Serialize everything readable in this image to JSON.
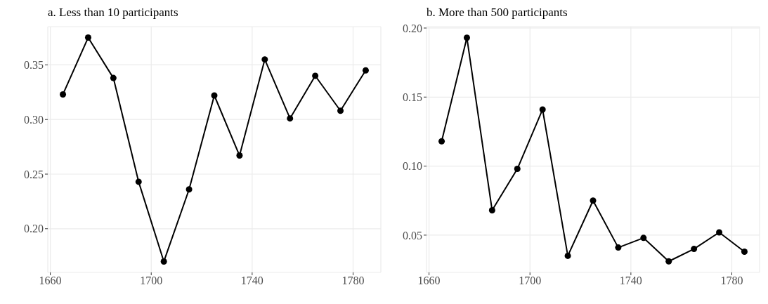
{
  "chart_data": [
    {
      "type": "line",
      "title": "a. Less than 10 participants",
      "x": [
        1665,
        1675,
        1685,
        1695,
        1705,
        1715,
        1725,
        1735,
        1745,
        1755,
        1765,
        1775,
        1785
      ],
      "series": [
        {
          "color": "#000000",
          "values": [
            0.323,
            0.375,
            0.338,
            0.243,
            0.17,
            0.236,
            0.322,
            0.267,
            0.355,
            0.301,
            0.34,
            0.308,
            0.345
          ]
        }
      ],
      "xlim": [
        1659,
        1791
      ],
      "xticks": [
        1660,
        1700,
        1740,
        1780
      ],
      "ylim": [
        0.16,
        0.385
      ],
      "yticks": [
        {
          "value": 0.2,
          "label": "0.20"
        },
        0.25,
        {
          "value": 0.3,
          "label": "0.30"
        },
        0.35
      ],
      "grid": true,
      "marker": "circle",
      "line_style": "solid"
    },
    {
      "type": "line",
      "title": "b. More than 500 participants",
      "x": [
        1665,
        1675,
        1685,
        1695,
        1705,
        1715,
        1725,
        1735,
        1745,
        1755,
        1765,
        1775,
        1785
      ],
      "series": [
        {
          "color": "#000000",
          "values": [
            0.118,
            0.193,
            0.068,
            0.098,
            0.141,
            0.035,
            0.075,
            0.041,
            0.048,
            0.031,
            0.04,
            0.052,
            0.038
          ]
        }
      ],
      "xlim": [
        1659,
        1791
      ],
      "xticks": [
        1660,
        1700,
        1740,
        1780
      ],
      "ylim": [
        0.023,
        0.201
      ],
      "yticks": [
        0.05,
        {
          "value": 0.1,
          "label": "0.10"
        },
        0.15,
        {
          "value": 0.2,
          "label": "0.20"
        }
      ],
      "grid": true,
      "marker": "circle",
      "line_style": "solid"
    }
  ]
}
